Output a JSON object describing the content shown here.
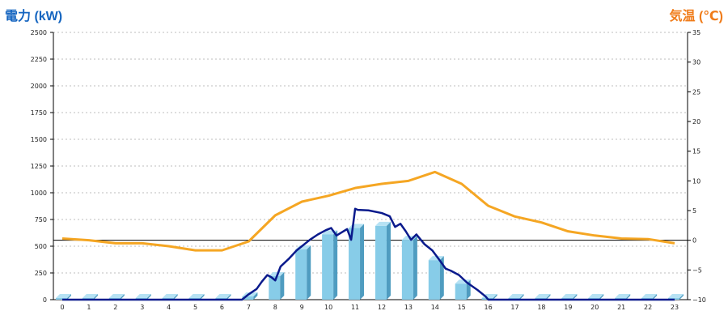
{
  "colors": {
    "power_title": "#1565c0",
    "temp_title": "#f07c1a",
    "bars_front": "#87cce8",
    "bars_side": "#4f9cc0",
    "bars_top": "#b6e2f4",
    "power_line": "#0a1a8c",
    "temp_line": "#f5a623",
    "grid": "#bdbdbd"
  },
  "chart_data": {
    "type": "bar",
    "left_axis_title": "電力 (kW)",
    "right_axis_title": "気温 (℃)",
    "x_ticks": [
      "0",
      "1",
      "2",
      "3",
      "4",
      "5",
      "6",
      "7",
      "8",
      "9",
      "10",
      "11",
      "12",
      "13",
      "14",
      "15",
      "16",
      "17",
      "18",
      "19",
      "20",
      "21",
      "22",
      "23"
    ],
    "left_ylim": [
      0,
      2500
    ],
    "left_ticks": [
      "0",
      "250",
      "500",
      "750",
      "1000",
      "1250",
      "1500",
      "1750",
      "2000",
      "2250",
      "2500"
    ],
    "right_ylim": [
      -10,
      35
    ],
    "right_ticks": [
      "−10",
      "−5",
      "0",
      "5",
      "10",
      "15",
      "20",
      "25",
      "30",
      "35"
    ],
    "grid": true,
    "series": [
      {
        "kind": "bar",
        "axis": "left",
        "values": [
          0,
          0,
          0,
          0,
          0,
          0,
          0,
          30,
          220,
          470,
          610,
          670,
          690,
          560,
          370,
          150,
          0,
          0,
          0,
          0,
          0,
          0,
          0,
          0
        ]
      },
      {
        "kind": "line",
        "axis": "left",
        "points": [
          [
            0,
            0
          ],
          [
            1,
            0
          ],
          [
            2,
            0
          ],
          [
            3,
            0
          ],
          [
            4,
            0
          ],
          [
            5,
            0
          ],
          [
            6,
            0
          ],
          [
            6.75,
            0
          ],
          [
            7,
            50
          ],
          [
            7.3,
            100
          ],
          [
            7.5,
            170
          ],
          [
            7.7,
            230
          ],
          [
            7.85,
            210
          ],
          [
            8,
            180
          ],
          [
            8.2,
            310
          ],
          [
            8.5,
            380
          ],
          [
            8.8,
            460
          ],
          [
            9,
            500
          ],
          [
            9.3,
            560
          ],
          [
            9.6,
            610
          ],
          [
            9.9,
            650
          ],
          [
            10.1,
            670
          ],
          [
            10.3,
            600
          ],
          [
            10.5,
            630
          ],
          [
            10.7,
            660
          ],
          [
            10.85,
            560
          ],
          [
            11,
            850
          ],
          [
            11.1,
            840
          ],
          [
            11.5,
            835
          ],
          [
            12,
            810
          ],
          [
            12.3,
            780
          ],
          [
            12.5,
            680
          ],
          [
            12.7,
            710
          ],
          [
            12.9,
            640
          ],
          [
            13.1,
            560
          ],
          [
            13.3,
            610
          ],
          [
            13.6,
            520
          ],
          [
            13.9,
            460
          ],
          [
            14.2,
            360
          ],
          [
            14.4,
            290
          ],
          [
            14.6,
            270
          ],
          [
            14.9,
            230
          ],
          [
            15.2,
            160
          ],
          [
            15.6,
            90
          ],
          [
            15.9,
            30
          ],
          [
            16,
            0
          ],
          [
            17,
            0
          ],
          [
            18,
            0
          ],
          [
            19,
            0
          ],
          [
            20,
            0
          ],
          [
            21,
            0
          ],
          [
            22,
            0
          ],
          [
            23,
            0
          ]
        ]
      },
      {
        "kind": "line",
        "axis": "right",
        "values": [
          0.3,
          0,
          -0.5,
          -0.5,
          -1,
          -1.7,
          -1.7,
          -0.2,
          4.2,
          6.5,
          7.5,
          8.8,
          9.5,
          10,
          11.5,
          9.5,
          5.8,
          4,
          3,
          1.5,
          0.8,
          0.3,
          0.2,
          -0.5
        ]
      }
    ]
  }
}
